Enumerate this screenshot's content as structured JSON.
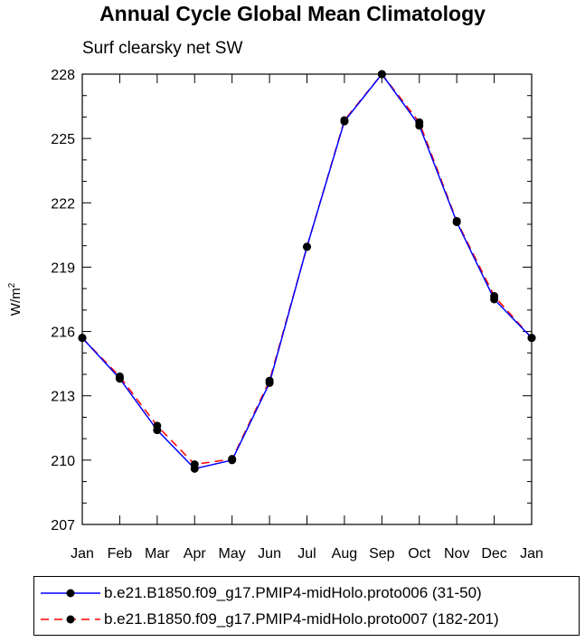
{
  "chart_data": {
    "type": "line",
    "title": "Annual Cycle Global Mean Climatology",
    "subtitle": "Surf clearsky net SW",
    "ylabel": "W/m",
    "ylabel_sup": "2",
    "categories": [
      "Jan",
      "Feb",
      "Mar",
      "Apr",
      "May",
      "Jun",
      "Jul",
      "Aug",
      "Sep",
      "Oct",
      "Nov",
      "Dec",
      "Jan"
    ],
    "ylim": [
      207,
      228
    ],
    "yticks": [
      207,
      210,
      213,
      216,
      219,
      222,
      225,
      228
    ],
    "grid": false,
    "legend_position": "bottom",
    "series": [
      {
        "name": "b.e21.B1850.f09_g17.PMIP4-midHolo.proto006 (31-50)",
        "color": "#0000ff",
        "dash": "solid",
        "values": [
          215.7,
          213.8,
          211.4,
          209.6,
          210.0,
          213.6,
          219.95,
          225.8,
          228.0,
          225.6,
          221.1,
          217.5,
          215.7
        ]
      },
      {
        "name": "b.e21.B1850.f09_g17.PMIP4-midHolo.proto007 (182-201)",
        "color": "#ff0000",
        "dash": "dashed",
        "values": [
          215.7,
          213.9,
          211.6,
          209.8,
          210.05,
          213.7,
          219.95,
          225.85,
          228.0,
          225.75,
          221.15,
          217.65,
          215.7
        ]
      }
    ]
  }
}
